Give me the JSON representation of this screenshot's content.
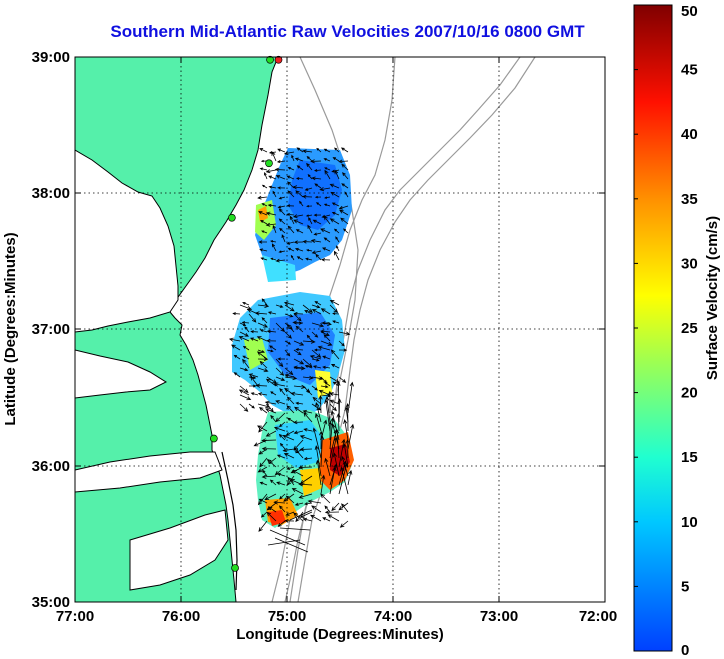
{
  "title": "Southern Mid-Atlantic Raw Velocities 2007/10/16 0800 GMT",
  "axes": {
    "xlabel": "Longitude (Degrees:Minutes)",
    "ylabel": "Latitude (Degrees:Minutes)",
    "xticks": [
      "77:00",
      "76:00",
      "75:00",
      "74:00",
      "73:00",
      "72:00"
    ],
    "yticks": [
      "39:00",
      "38:00",
      "37:00",
      "36:00",
      "35:00"
    ],
    "xlim": [
      -77,
      -72
    ],
    "ylim": [
      35,
      39
    ],
    "grid": "dotted"
  },
  "colorbar": {
    "label": "Surface Velocity (cm/s)",
    "ticks": [
      "0",
      "5",
      "10",
      "15",
      "20",
      "25",
      "30",
      "35",
      "40",
      "45",
      "50"
    ],
    "range": [
      0,
      50
    ],
    "colormap": "jet"
  },
  "colors": {
    "land": "#55f0aa",
    "coast": "#000000",
    "bathymetry": "#9a9a9a",
    "title": "#1010e0",
    "station_green": "#22dd22",
    "station_red": "#ee2222"
  },
  "stations": [
    {
      "lon": -75.08,
      "lat": 38.98,
      "color": "red"
    },
    {
      "lon": -75.16,
      "lat": 38.98,
      "color": "green"
    },
    {
      "lon": -75.17,
      "lat": 38.22,
      "color": "green"
    },
    {
      "lon": -75.52,
      "lat": 37.82,
      "color": "green"
    },
    {
      "lon": -75.69,
      "lat": 36.2,
      "color": "green"
    },
    {
      "lon": -75.49,
      "lat": 35.25,
      "color": "green"
    }
  ]
}
